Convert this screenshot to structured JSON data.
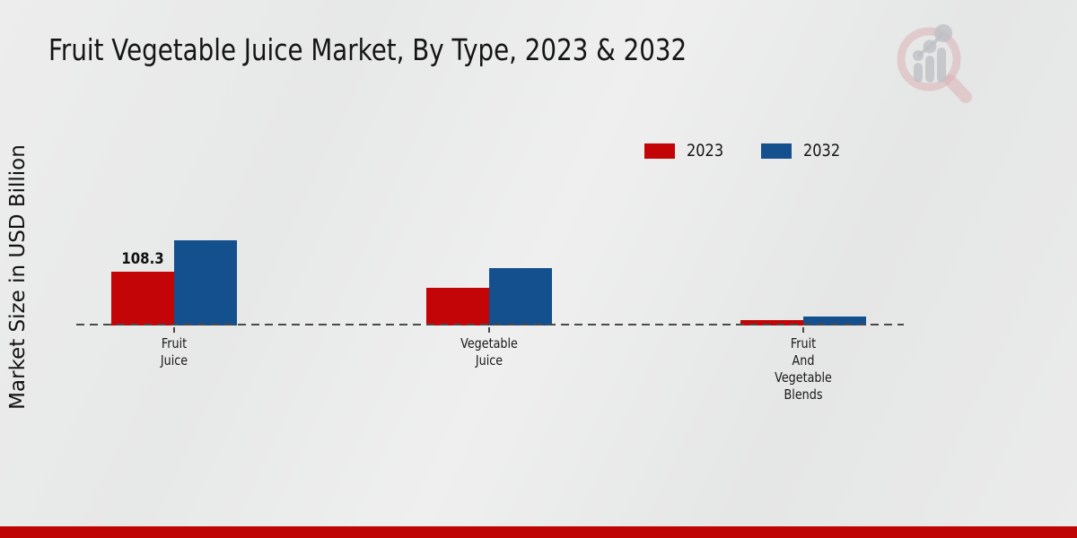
{
  "title": "Fruit Vegetable Juice Market, By Type, 2023 & 2032",
  "watermark_icon": "market-research-future-magnifier-logo",
  "chart_data": {
    "type": "bar",
    "title": "Fruit Vegetable Juice Market, By Type, 2023 & 2032",
    "xlabel": "",
    "ylabel": "Market Size in USD Billion",
    "unit": "USD Billion",
    "categories": [
      "Fruit Juice",
      "Vegetable Juice",
      "Fruit And Vegetable Blends"
    ],
    "series": [
      {
        "name": "2023",
        "color": "#c40507",
        "values": [
          108.3,
          75.8,
          10.8
        ]
      },
      {
        "name": "2032",
        "color": "#15508e",
        "values": [
          171.4,
          115.5,
          18.1
        ]
      }
    ],
    "data_labels": [
      {
        "series_index": 0,
        "category_index": 0,
        "text": "108.3"
      }
    ],
    "legend_position": "top-right",
    "grid": false,
    "baseline_style": "dashed",
    "colors": {
      "accent_red": "#c40507",
      "accent_blue": "#15508e",
      "dash": "#4a4a4a"
    }
  },
  "footer": {
    "accent_color": "#bf0404"
  }
}
